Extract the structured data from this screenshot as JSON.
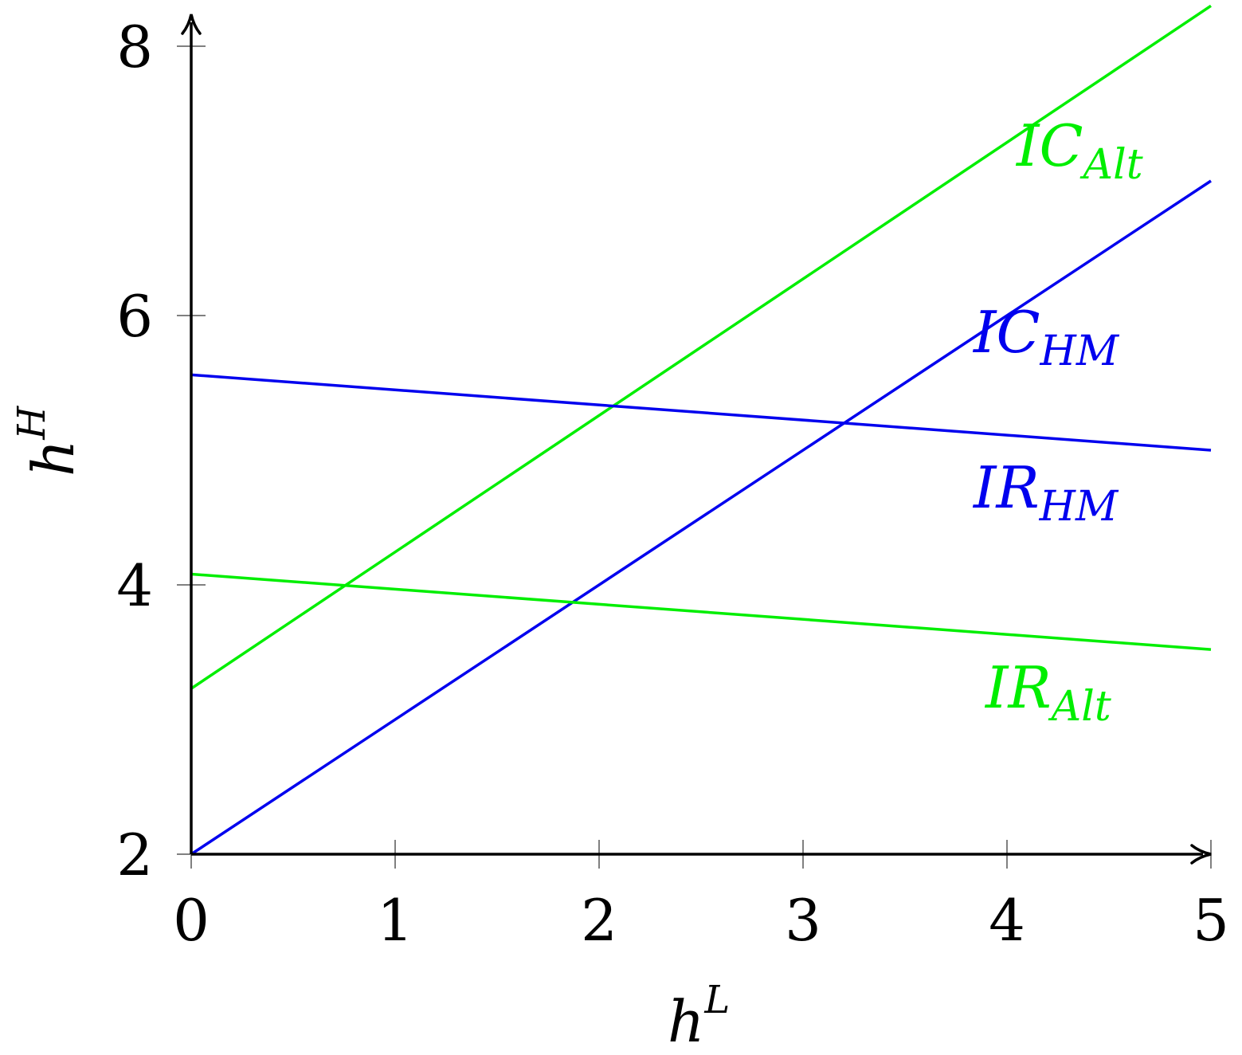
{
  "chart_data": {
    "type": "line",
    "xlabel": {
      "base": "h",
      "sup": "L"
    },
    "ylabel": {
      "base": "h",
      "sup": "H"
    },
    "xlim": [
      0,
      5
    ],
    "ylim": [
      2,
      8
    ],
    "xticks": [
      0,
      1,
      2,
      3,
      4,
      5
    ],
    "yticks": [
      2,
      4,
      6,
      8
    ],
    "grid": false,
    "series": [
      {
        "name": "IC_Alt",
        "label_main": "IC",
        "label_sub": "Alt",
        "color": "#00ee00",
        "x": [
          0,
          5
        ],
        "y": [
          3.23,
          8.3
        ]
      },
      {
        "name": "IC_HM",
        "label_main": "IC",
        "label_sub": "HM",
        "color": "#0000ee",
        "x": [
          0,
          5
        ],
        "y": [
          2.0,
          7.0
        ]
      },
      {
        "name": "IR_HM",
        "label_main": "IR",
        "label_sub": "HM",
        "color": "#0000ee",
        "x": [
          0,
          5
        ],
        "y": [
          5.56,
          5.0
        ]
      },
      {
        "name": "IR_Alt",
        "label_main": "IR",
        "label_sub": "Alt",
        "color": "#00ee00",
        "x": [
          0,
          5
        ],
        "y": [
          4.08,
          3.52
        ]
      }
    ]
  }
}
